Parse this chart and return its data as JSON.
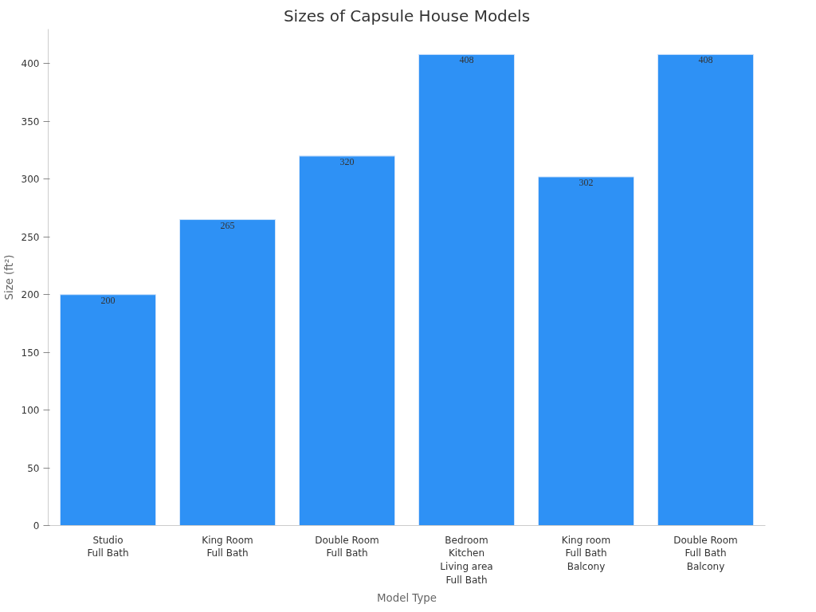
{
  "chart_data": {
    "type": "bar",
    "title": "Sizes of Capsule House Models",
    "xlabel": "Model Type",
    "ylabel": "Size (ft²)",
    "categories": [
      "Studio\nFull Bath",
      "King Room\nFull Bath",
      "Double Room\nFull Bath",
      "Bedroom\nKitchen\nLiving area\nFull Bath",
      "King room\nFull Bath\nBalcony",
      "Double Room\nFull Bath\nBalcony"
    ],
    "values": [
      200,
      265,
      320,
      408,
      302,
      408
    ],
    "color": "#2e91f5",
    "ylim": [
      0,
      430
    ],
    "yticks": [
      0,
      50,
      100,
      150,
      200,
      250,
      300,
      350,
      400
    ],
    "grid": false,
    "data_labels": true
  }
}
